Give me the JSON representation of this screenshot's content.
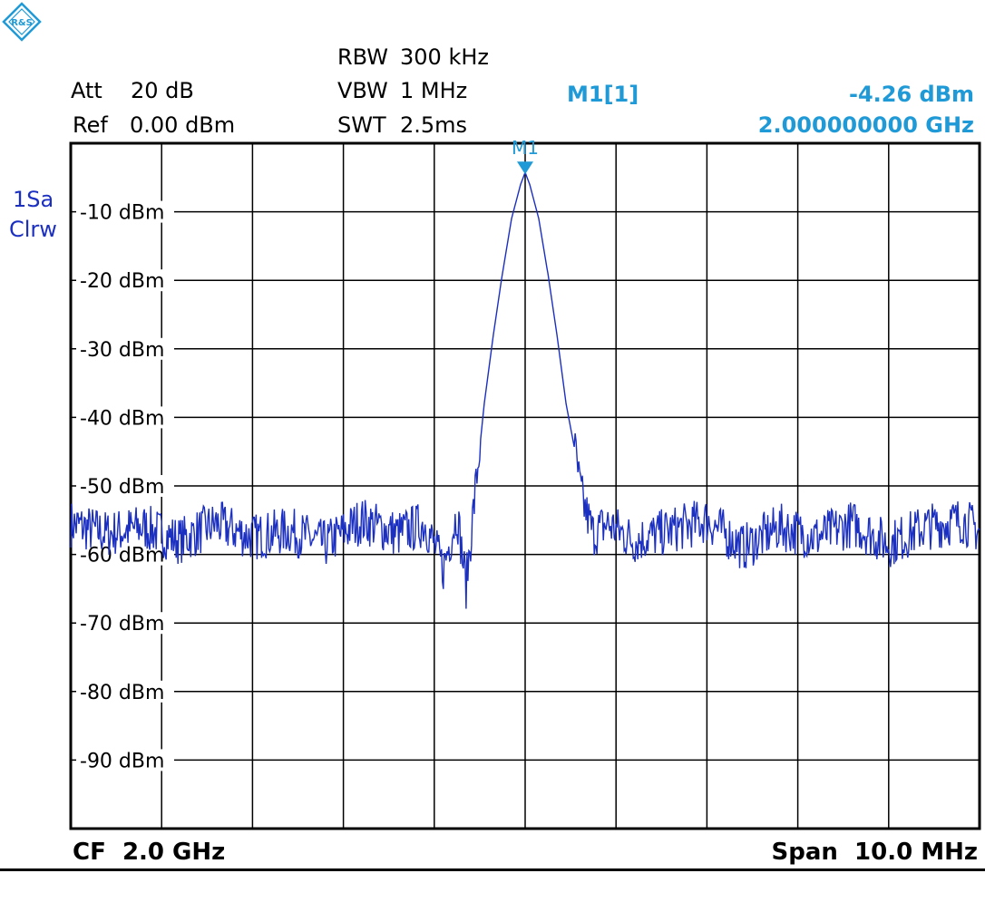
{
  "settings": {
    "att_label": "Att",
    "att_value": "20 dB",
    "ref_label": "Ref",
    "ref_value": "0.00 dBm",
    "rbw_label": "RBW",
    "rbw_value": "300 kHz",
    "vbw_label": "VBW",
    "vbw_value": "1 MHz",
    "swt_label": "SWT",
    "swt_value": "2.5ms"
  },
  "marker": {
    "name": "M1[1]",
    "level": "-4.26 dBm",
    "freq": "2.000000000 GHz",
    "label": "M1",
    "x_mhz": 2000.0,
    "y_dbm": -4.26,
    "color": "#1f9ad6"
  },
  "trace_info": {
    "line1": "1Sa",
    "line2": "Clrw",
    "color": "#1b2fc0"
  },
  "footer": {
    "cf": "CF  2.0 GHz",
    "span": "Span  10.0 MHz"
  },
  "chart_data": {
    "type": "line",
    "x_unit": "MHz",
    "y_unit": "dBm",
    "xlim": [
      1995.0,
      2005.0
    ],
    "ylim": [
      -100,
      0
    ],
    "grid": true,
    "y_tick_labels": [
      "-10 dBm",
      "-20 dBm",
      "-30 dBm",
      "-40 dBm",
      "-50 dBm",
      "-60 dBm",
      "-70 dBm",
      "-80 dBm",
      "-90 dBm"
    ],
    "y_tick_values": [
      -10,
      -20,
      -30,
      -40,
      -50,
      -60,
      -70,
      -80,
      -90
    ],
    "series": [
      {
        "color": "#1b2fc0",
        "peak_x": 2000.0,
        "peak_y": -4.26,
        "noise_floor": -56.5,
        "x": [
          1995.0,
          1995.4,
          1995.8,
          1996.2,
          1996.6,
          1997.0,
          1997.4,
          1997.8,
          1998.2,
          1998.6,
          1998.9,
          1999.1,
          1999.25,
          1999.35,
          1999.45,
          1999.55,
          1999.65,
          1999.75,
          1999.85,
          1999.95,
          2000.0,
          2000.05,
          2000.15,
          2000.25,
          2000.35,
          2000.45,
          2000.55,
          2000.6,
          2000.65,
          2000.75,
          2000.9,
          2001.2,
          2001.6,
          2002.0,
          2002.4,
          2002.8,
          2003.2,
          2003.6,
          2004.0,
          2004.4,
          2004.8,
          2005.0
        ],
        "y": [
          -55.5,
          -57.0,
          -56.0,
          -58.0,
          -55.5,
          -57.5,
          -56.5,
          -58.5,
          -55.0,
          -57.0,
          -55.5,
          -62.0,
          -54.0,
          -64.5,
          -51.0,
          -38.0,
          -28.0,
          -19.0,
          -11.0,
          -6.0,
          -4.26,
          -6.0,
          -11.0,
          -19.0,
          -28.0,
          -38.0,
          -45.0,
          -50.0,
          -53.0,
          -57.0,
          -55.5,
          -58.0,
          -56.5,
          -55.0,
          -59.0,
          -56.0,
          -57.5,
          -55.5,
          -58.5,
          -56.0,
          -55.0,
          -56.5
        ]
      }
    ]
  }
}
